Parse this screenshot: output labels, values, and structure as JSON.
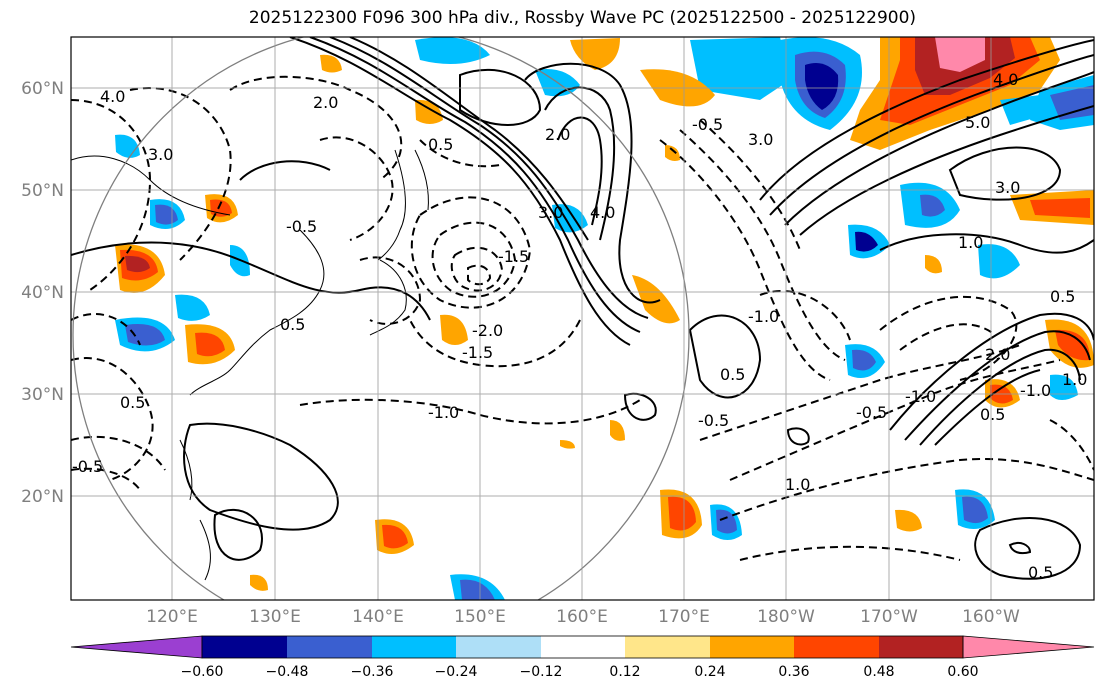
{
  "title": "2025122300 F096 300 hPa div., Rossby Wave PC (2025122500 - 2025122900)",
  "lat_labels": [
    "20°N",
    "30°N",
    "40°N",
    "50°N",
    "60°N"
  ],
  "lon_labels": [
    "120°E",
    "130°E",
    "140°E",
    "150°E",
    "160°E",
    "170°E",
    "180°W",
    "170°W",
    "160°W"
  ],
  "colorbar": {
    "colors": [
      "#9b3fd1",
      "#000090",
      "#3a5fd0",
      "#00bfff",
      "#aedff7",
      "#ffffff",
      "#ffe68a",
      "#ffa500",
      "#ff4500",
      "#b22222",
      "#ff88aa"
    ],
    "tick_labels": [
      "−0.60",
      "−0.48",
      "−0.36",
      "−0.24",
      "−0.12",
      "0.12",
      "0.24",
      "0.36",
      "0.48",
      "0.60"
    ]
  },
  "contour_labels": [
    "4.0",
    "3.0",
    "2.0",
    "0.5",
    "-0.5",
    "0.5",
    "-1.5",
    "-2.0",
    "-1.5",
    "-1.0",
    "0.5",
    "2.0",
    "3.0",
    "4.0",
    "-0.5",
    "-1.0",
    "0.5",
    "-0.5",
    "-1.0",
    "1.0",
    "3.0",
    "4.0",
    "5.0",
    "3.0",
    "1.0",
    "0.5",
    "2.0",
    "-1.0",
    "-0.5",
    "0.5",
    "1.0",
    "0.5",
    "-0.5"
  ]
}
